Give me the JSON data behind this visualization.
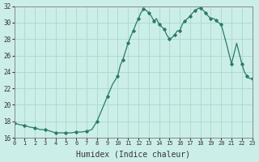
{
  "xlabel": "Humidex (Indice chaleur)",
  "ylabel": "",
  "background_color": "#cceee8",
  "grid_color": "#aaddcc",
  "line_color": "#2a7a6a",
  "marker_color": "#2a7a6a",
  "xlim": [
    0,
    23
  ],
  "ylim": [
    16,
    32
  ],
  "yticks": [
    16,
    18,
    20,
    22,
    24,
    26,
    28,
    30,
    32
  ],
  "xticks": [
    0,
    1,
    2,
    3,
    4,
    5,
    6,
    7,
    8,
    9,
    10,
    11,
    12,
    13,
    14,
    15,
    16,
    17,
    18,
    19,
    20,
    21,
    22,
    23
  ],
  "x": [
    0,
    0.5,
    1,
    1.5,
    2,
    2.5,
    3,
    3.5,
    4,
    4.5,
    5,
    5.5,
    6,
    6.5,
    7,
    7.5,
    8,
    8.5,
    9,
    9.5,
    10,
    10.25,
    10.5,
    10.75,
    11,
    11.25,
    11.5,
    11.75,
    12,
    12.25,
    12.5,
    12.75,
    13,
    13.25,
    13.5,
    13.75,
    14,
    14.25,
    14.5,
    14.75,
    15,
    15.25,
    15.5,
    15.75,
    16,
    16.25,
    16.5,
    16.75,
    17,
    17.25,
    17.5,
    17.75,
    18,
    18.25,
    18.5,
    18.75,
    19,
    19.25,
    19.5,
    19.75,
    20,
    20.5,
    21,
    21.5,
    22,
    22.25,
    22.5,
    22.75,
    23
  ],
  "y": [
    17.8,
    17.6,
    17.5,
    17.3,
    17.2,
    17.0,
    17.0,
    16.8,
    16.6,
    16.6,
    16.6,
    16.6,
    16.7,
    16.7,
    16.8,
    17.0,
    18.0,
    19.5,
    21.0,
    22.5,
    23.5,
    24.8,
    25.5,
    26.5,
    27.5,
    28.3,
    29.0,
    29.8,
    30.5,
    31.2,
    31.7,
    31.5,
    31.2,
    30.8,
    30.2,
    30.5,
    29.8,
    29.5,
    29.2,
    28.5,
    28.0,
    28.2,
    28.5,
    29.0,
    29.0,
    29.8,
    30.2,
    30.5,
    30.8,
    31.2,
    31.5,
    31.7,
    31.8,
    31.5,
    31.2,
    30.8,
    30.5,
    30.5,
    30.3,
    30.0,
    29.8,
    27.5,
    25.0,
    27.5,
    25.0,
    24.0,
    23.5,
    23.2,
    23.2
  ]
}
